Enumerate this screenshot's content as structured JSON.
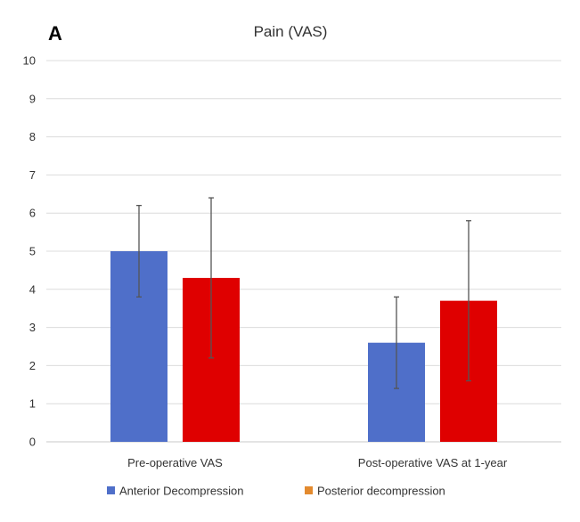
{
  "panel_label": "A",
  "chart_data": {
    "type": "bar",
    "title": "Pain (VAS)",
    "xlabel": "",
    "ylabel": "",
    "ylim": [
      0,
      10
    ],
    "yticks": [
      0,
      1,
      2,
      3,
      4,
      5,
      6,
      7,
      8,
      9,
      10
    ],
    "grid": true,
    "legend_position": "bottom",
    "categories": [
      "Pre-operative VAS",
      "Post-operative VAS at 1-year"
    ],
    "series": [
      {
        "name": "Anterior Decompression",
        "bar_color": "#4f6fc9",
        "legend_color": "#4f6fc9",
        "values": [
          5.0,
          2.6
        ],
        "err_low": [
          3.8,
          1.4
        ],
        "err_high": [
          6.2,
          3.8
        ]
      },
      {
        "name": "Posterior decompression",
        "bar_color": "#df0000",
        "legend_color": "#e38a2e",
        "values": [
          4.3,
          3.7
        ],
        "err_low": [
          2.2,
          1.6
        ],
        "err_high": [
          6.4,
          5.8
        ]
      }
    ]
  }
}
